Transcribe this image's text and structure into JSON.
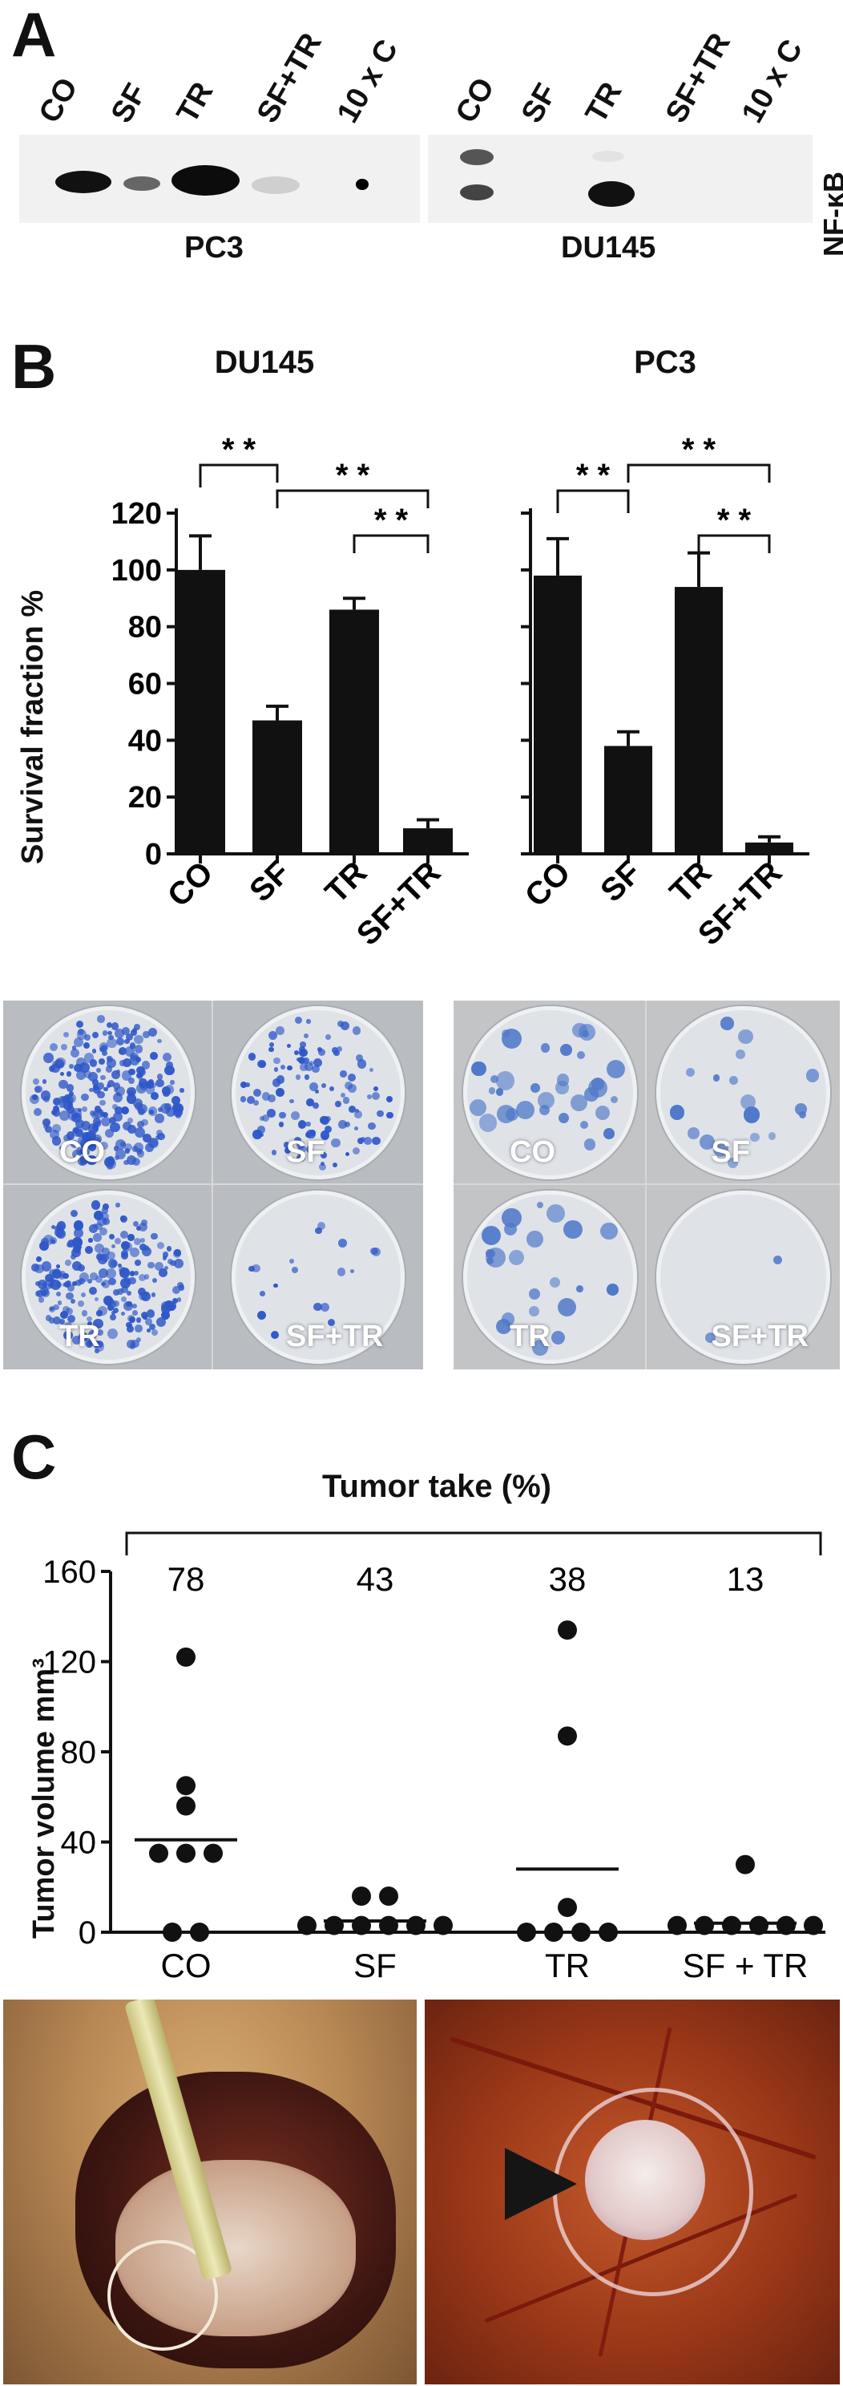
{
  "panels": {
    "a": "A",
    "b": "B",
    "c": "C"
  },
  "panel_a": {
    "lanes_pc3": [
      "CO",
      "SF",
      "TR",
      "SF+TR",
      "10 x C"
    ],
    "lanes_du145": [
      "CO",
      "SF",
      "TR",
      "SF+TR",
      "10 x C"
    ],
    "blot_label": "NF-κB",
    "cell_line_left": "PC3",
    "cell_line_right": "DU145"
  },
  "panel_b": {
    "plates_left": [
      "CO",
      "SF",
      "TR",
      "SF+TR"
    ],
    "plates_right": [
      "CO",
      "SF",
      "TR",
      "SF+TR"
    ],
    "colors": {
      "bar": "#111111",
      "plate_left": "#2f57c8",
      "plate_right": "#4f78c9"
    }
  },
  "chart_data": [
    {
      "type": "bar",
      "title": "DU145",
      "ylabel": "Survival fraction %",
      "categories": [
        "CO",
        "SF",
        "TR",
        "SF+TR"
      ],
      "values": [
        100,
        47,
        86,
        9
      ],
      "errors": [
        12,
        5,
        4,
        3
      ],
      "ylim": [
        0,
        120
      ],
      "yticks": [
        0,
        20,
        40,
        60,
        80,
        100,
        120
      ],
      "significance": [
        {
          "from": "CO",
          "to": "SF",
          "label": "* *"
        },
        {
          "from": "SF",
          "to": "SF+TR",
          "label": "* *"
        },
        {
          "from": "TR",
          "to": "SF+TR",
          "label": "* *"
        }
      ]
    },
    {
      "type": "bar",
      "title": "PC3",
      "ylabel": "",
      "categories": [
        "CO",
        "SF",
        "TR",
        "SF+TR"
      ],
      "values": [
        98,
        38,
        94,
        4
      ],
      "errors": [
        13,
        5,
        12,
        2
      ],
      "ylim": [
        0,
        120
      ],
      "yticks": [],
      "significance": [
        {
          "from": "CO",
          "to": "SF",
          "label": "* *"
        },
        {
          "from": "SF",
          "to": "SF+TR",
          "label": "* *"
        },
        {
          "from": "TR",
          "to": "SF+TR",
          "label": "* *"
        }
      ]
    },
    {
      "type": "scatter",
      "title": "Tumor take (%)",
      "ylabel": "Tumor volume mm³",
      "categories": [
        "CO",
        "SF",
        "TR",
        "SF + TR"
      ],
      "tumor_take": [
        78,
        43,
        38,
        13
      ],
      "points": [
        [
          122,
          65,
          56,
          35,
          35,
          35,
          0,
          0
        ],
        [
          16,
          16,
          3,
          3,
          3,
          3,
          3,
          3
        ],
        [
          134,
          87,
          11,
          0,
          0,
          0,
          0
        ],
        [
          30,
          3,
          3,
          3,
          3,
          3,
          3
        ]
      ],
      "means": [
        41,
        5,
        28,
        4
      ],
      "ylim": [
        0,
        160
      ],
      "yticks": [
        0,
        40,
        80,
        120,
        160
      ]
    }
  ]
}
